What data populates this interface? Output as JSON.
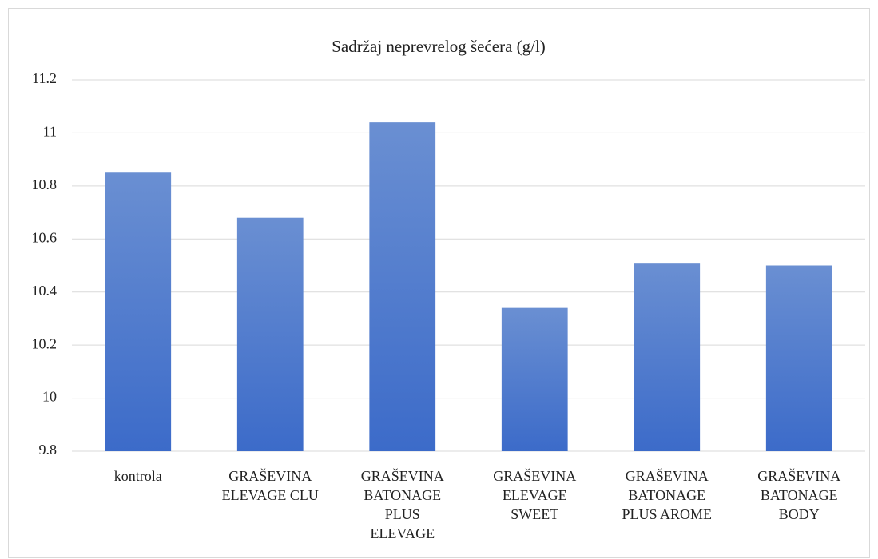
{
  "chart_data": {
    "type": "bar",
    "title": "Sadržaj neprevrelog šećera (g/l)",
    "categories": [
      "kontrola",
      "GRAŠEVINA\nELEVAGE CLU",
      "GRAŠEVINA\nBATONAGE\nPLUS\nELEVAGE",
      "GRAŠEVINA\nELEVAGE\nSWEET",
      "GRAŠEVINA\nBATONAGE\nPLUS AROME",
      "GRAŠEVINA\nBATONAGE\nBODY"
    ],
    "values": [
      10.85,
      10.68,
      11.04,
      10.34,
      10.51,
      10.5
    ],
    "color": "#4472c4",
    "ylim": [
      9.8,
      11.2
    ],
    "yticks": [
      9.8,
      10,
      10.2,
      10.4,
      10.6,
      10.8,
      11,
      11.2
    ],
    "grid": true
  }
}
